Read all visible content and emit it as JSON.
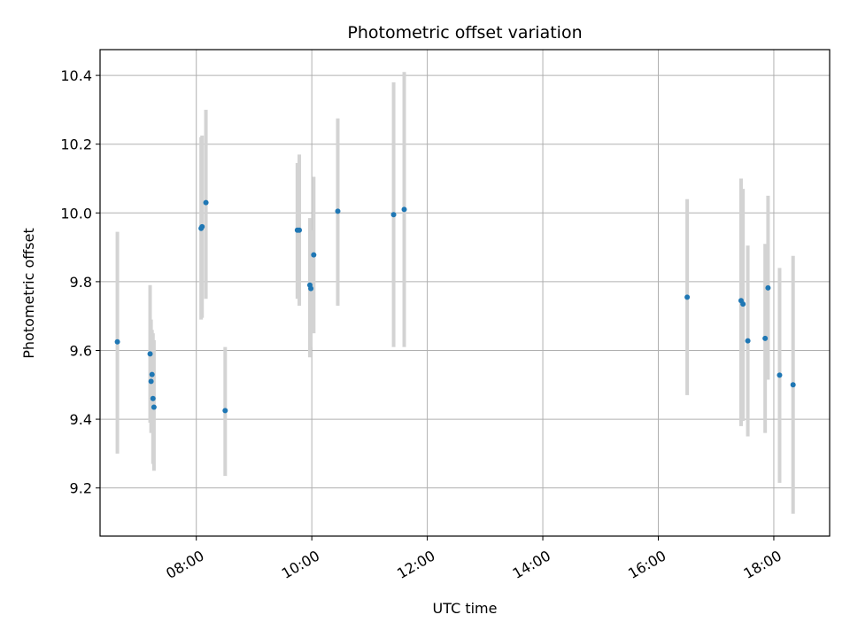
{
  "chart_data": {
    "type": "scatter",
    "title": "Photometric offset variation",
    "xlabel": "UTC time",
    "ylabel": "Photometric offset",
    "x_axis_kind": "time-of-day",
    "xlim": [
      "06:20",
      "18:58"
    ],
    "ylim": [
      9.06,
      10.475
    ],
    "x_ticks": [
      "08:00",
      "10:00",
      "12:00",
      "14:00",
      "16:00",
      "18:00"
    ],
    "y_ticks": [
      9.2,
      9.4,
      9.6,
      9.8,
      10.0,
      10.2,
      10.4
    ],
    "grid": true,
    "legend": "none",
    "marker_color": "#1f77b4",
    "errorbar_color": "#d3d3d3",
    "points": [
      {
        "x": "06:38",
        "y": 9.625,
        "ylow": 9.3,
        "yhigh": 9.945
      },
      {
        "x": "07:12",
        "y": 9.59,
        "ylow": 9.39,
        "yhigh": 9.79
      },
      {
        "x": "07:13",
        "y": 9.51,
        "ylow": 9.36,
        "yhigh": 9.69
      },
      {
        "x": "07:14",
        "y": 9.53,
        "ylow": 9.41,
        "yhigh": 9.66
      },
      {
        "x": "07:15",
        "y": 9.46,
        "ylow": 9.27,
        "yhigh": 9.65
      },
      {
        "x": "07:16",
        "y": 9.435,
        "ylow": 9.25,
        "yhigh": 9.63
      },
      {
        "x": "08:05",
        "y": 9.955,
        "ylow": 9.69,
        "yhigh": 10.22
      },
      {
        "x": "08:06",
        "y": 9.96,
        "ylow": 9.695,
        "yhigh": 10.225
      },
      {
        "x": "08:10",
        "y": 10.03,
        "ylow": 9.75,
        "yhigh": 10.3
      },
      {
        "x": "08:30",
        "y": 9.425,
        "ylow": 9.235,
        "yhigh": 9.61
      },
      {
        "x": "09:45",
        "y": 9.95,
        "ylow": 9.75,
        "yhigh": 10.145
      },
      {
        "x": "09:47",
        "y": 9.95,
        "ylow": 9.73,
        "yhigh": 10.17
      },
      {
        "x": "09:58",
        "y": 9.79,
        "ylow": 9.58,
        "yhigh": 9.985
      },
      {
        "x": "09:59",
        "y": 9.78,
        "ylow": 9.61,
        "yhigh": 9.95
      },
      {
        "x": "10:02",
        "y": 9.878,
        "ylow": 9.65,
        "yhigh": 10.105
      },
      {
        "x": "10:27",
        "y": 10.005,
        "ylow": 9.73,
        "yhigh": 10.275
      },
      {
        "x": "11:25",
        "y": 9.995,
        "ylow": 9.61,
        "yhigh": 10.38
      },
      {
        "x": "11:36",
        "y": 10.01,
        "ylow": 9.61,
        "yhigh": 10.41
      },
      {
        "x": "16:30",
        "y": 9.755,
        "ylow": 9.47,
        "yhigh": 10.04
      },
      {
        "x": "17:26",
        "y": 9.745,
        "ylow": 9.38,
        "yhigh": 10.1
      },
      {
        "x": "17:28",
        "y": 9.735,
        "ylow": 9.395,
        "yhigh": 10.07
      },
      {
        "x": "17:33",
        "y": 9.628,
        "ylow": 9.35,
        "yhigh": 9.905
      },
      {
        "x": "17:51",
        "y": 9.635,
        "ylow": 9.36,
        "yhigh": 9.91
      },
      {
        "x": "17:54",
        "y": 9.782,
        "ylow": 9.515,
        "yhigh": 10.05
      },
      {
        "x": "18:06",
        "y": 9.528,
        "ylow": 9.215,
        "yhigh": 9.84
      },
      {
        "x": "18:20",
        "y": 9.5,
        "ylow": 9.125,
        "yhigh": 9.875
      }
    ]
  }
}
